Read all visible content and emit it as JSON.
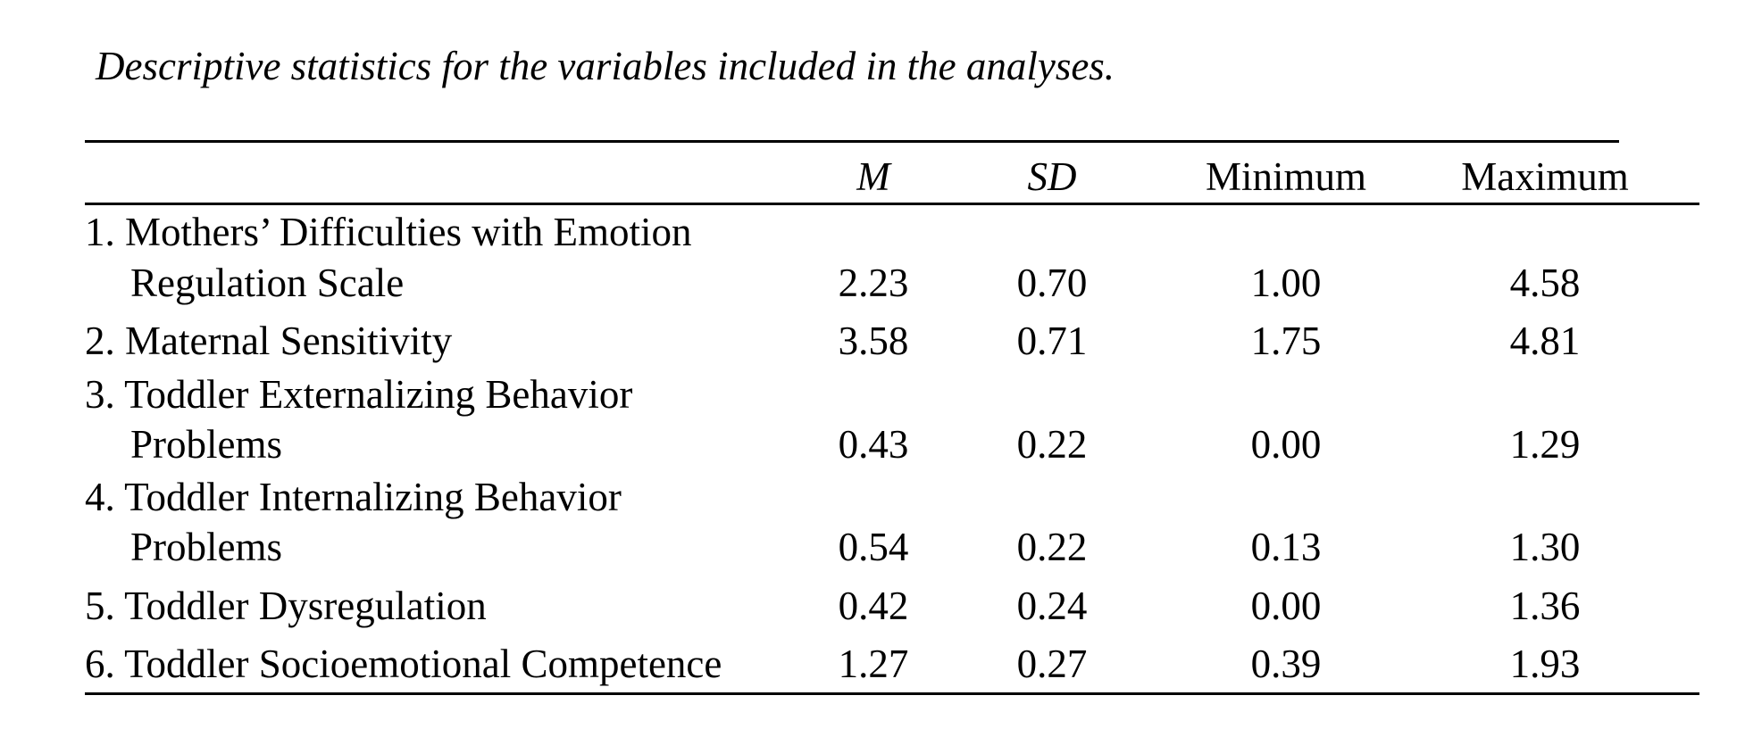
{
  "caption": "Descriptive statistics for the variables included in the analyses.",
  "table": {
    "columns": [
      "M",
      "SD",
      "Minimum",
      "Maximum"
    ],
    "rows": [
      {
        "line1": "1. Mothers’ Difficulties with Emotion",
        "line2": "Regulation Scale",
        "M": "2.23",
        "SD": "0.70",
        "Minimum": "1.00",
        "Maximum": "4.58"
      },
      {
        "line1": "2. Maternal Sensitivity",
        "line2": "",
        "M": "3.58",
        "SD": "0.71",
        "Minimum": "1.75",
        "Maximum": "4.81"
      },
      {
        "line1": "3. Toddler Externalizing Behavior",
        "line2": "Problems",
        "M": "0.43",
        "SD": "0.22",
        "Minimum": "0.00",
        "Maximum": "1.29"
      },
      {
        "line1": "4. Toddler Internalizing Behavior",
        "line2": "Problems",
        "M": "0.54",
        "SD": "0.22",
        "Minimum": "0.13",
        "Maximum": "1.30"
      },
      {
        "line1": "5. Toddler Dysregulation",
        "line2": "",
        "M": "0.42",
        "SD": "0.24",
        "Minimum": "0.00",
        "Maximum": "1.36"
      },
      {
        "line1": "6. Toddler Socioemotional Competence",
        "line2": "",
        "M": "1.27",
        "SD": "0.27",
        "Minimum": "0.39",
        "Maximum": "1.93"
      }
    ]
  }
}
